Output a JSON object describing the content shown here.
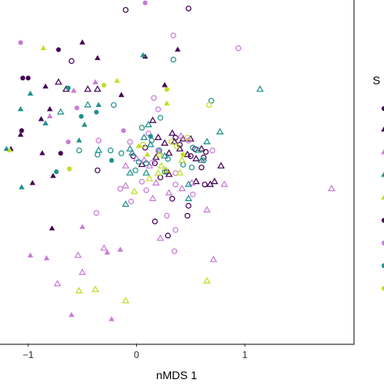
{
  "chart_data": {
    "type": "scatter",
    "title": "",
    "xlabel": "nMDS 1",
    "ylabel": "",
    "xlim": [
      -1.26,
      2.0
    ],
    "ylim": [
      -1.22,
      1.2
    ],
    "x_ticks": [
      -1,
      0,
      1
    ],
    "x_tick_labels": [
      "−1",
      "0",
      "1"
    ],
    "grid": false,
    "legend": {
      "position": "right",
      "title_visible_fragment": "S",
      "entries_visible": false
    },
    "colors": {
      "purple": "#440154",
      "lilac": "#c77cd6",
      "teal": "#21908c",
      "lime": "#bddf26"
    },
    "series": [
      {
        "color": "purple",
        "shape": "triangle-filled",
        "points": [
          [
            -0.5,
            0.9
          ],
          [
            -0.36,
            0.79
          ],
          [
            0.08,
            0.8
          ],
          [
            0.38,
            0.85
          ],
          [
            -0.84,
            0.59
          ],
          [
            -0.8,
            0.43
          ],
          [
            -0.88,
            0.36
          ],
          [
            -1.07,
            0.25
          ],
          [
            -0.87,
            0.12
          ],
          [
            -0.77,
            -0.04
          ],
          [
            -0.96,
            -0.09
          ],
          [
            -1.16,
            0.15
          ],
          [
            -0.78,
            -0.41
          ],
          [
            -0.14,
            0.53
          ],
          [
            0.26,
            0.6
          ]
        ]
      },
      {
        "color": "purple",
        "shape": "triangle-open",
        "points": [
          [
            -0.45,
            0.57
          ],
          [
            -0.72,
            0.62
          ],
          [
            -0.65,
            0.57
          ],
          [
            0.05,
            0.04
          ],
          [
            0.18,
            0.09
          ],
          [
            0.26,
            0.19
          ],
          [
            0.3,
            0.12
          ],
          [
            0.33,
            0.26
          ],
          [
            0.35,
            0.2
          ],
          [
            0.4,
            0.15
          ],
          [
            0.47,
            0.11
          ],
          [
            0.5,
            0.22
          ],
          [
            0.55,
            0.08
          ],
          [
            0.6,
            0.15
          ],
          [
            0.2,
            0.23
          ],
          [
            0.43,
            0.22
          ],
          [
            0.3,
            -0.03
          ],
          [
            0.55,
            -0.08
          ],
          [
            0.68,
            -0.1
          ],
          [
            0.78,
            0.03
          ],
          [
            0.72,
            -0.08
          ],
          [
            0.15,
            0.35
          ],
          [
            -0.36,
            0.57
          ]
        ]
      },
      {
        "color": "purple",
        "shape": "circle-filled",
        "points": [
          [
            -1.0,
            0.65
          ],
          [
            -1.05,
            0.65
          ],
          [
            -0.72,
            0.85
          ],
          [
            -1.06,
            0.28
          ],
          [
            -0.7,
            0.12
          ]
        ]
      },
      {
        "color": "purple",
        "shape": "circle-open",
        "points": [
          [
            -0.6,
            0.77
          ],
          [
            -0.1,
            1.13
          ],
          [
            0.48,
            1.14
          ],
          [
            0.08,
            0.16
          ],
          [
            0.17,
            0.05
          ],
          [
            -0.36,
            0.0
          ],
          [
            0.28,
            -0.01
          ],
          [
            0.4,
            0.18
          ],
          [
            0.5,
            0.1
          ],
          [
            0.54,
            0.15
          ],
          [
            0.62,
            0.09
          ],
          [
            0.64,
            0.13
          ],
          [
            0.63,
            -0.1
          ],
          [
            0.22,
            -0.05
          ],
          [
            0.33,
            -0.2
          ],
          [
            0.48,
            -0.25
          ],
          [
            0.17,
            -0.36
          ],
          [
            0.29,
            -0.46
          ],
          [
            0.47,
            -0.32
          ],
          [
            -0.03,
            0.1
          ],
          [
            0.36,
            0.23
          ],
          [
            0.6,
            0.02
          ]
        ]
      },
      {
        "color": "lilac",
        "shape": "triangle-filled",
        "points": [
          [
            -0.8,
            0.38
          ],
          [
            -0.38,
            0.62
          ],
          [
            -0.58,
            0.56
          ],
          [
            -0.5,
            -0.4
          ],
          [
            -0.83,
            -0.62
          ],
          [
            -0.15,
            -0.56
          ],
          [
            -0.27,
            -0.58
          ],
          [
            -0.98,
            -0.6
          ],
          [
            -0.6,
            -1.02
          ],
          [
            -0.23,
            -1.05
          ]
        ]
      },
      {
        "color": "lilac",
        "shape": "triangle-open",
        "points": [
          [
            0.0,
            0.08
          ],
          [
            0.12,
            0.03
          ],
          [
            0.21,
            0.13
          ],
          [
            0.18,
            -0.09
          ],
          [
            -0.1,
            -0.11
          ],
          [
            0.41,
            0.24
          ],
          [
            0.3,
            -0.16
          ],
          [
            0.42,
            -0.13
          ],
          [
            0.51,
            -0.09
          ],
          [
            0.81,
            -0.1
          ],
          [
            1.8,
            -0.13
          ],
          [
            0.15,
            -0.2
          ],
          [
            0.65,
            -0.28
          ],
          [
            0.22,
            -0.48
          ],
          [
            0.71,
            -0.63
          ],
          [
            -0.54,
            -0.6
          ],
          [
            -0.3,
            -0.55
          ],
          [
            -0.5,
            -0.72
          ],
          [
            -0.73,
            -0.8
          ],
          [
            0.07,
            0.07
          ],
          [
            -0.1,
            0.03
          ]
        ]
      },
      {
        "color": "lilac",
        "shape": "circle-filled",
        "points": [
          [
            0.3,
            1.24
          ],
          [
            0.08,
            1.18
          ],
          [
            -1.07,
            0.9
          ],
          [
            -0.55,
            0.44
          ],
          [
            -0.12,
            0.28
          ],
          [
            -0.63,
            0.2
          ]
        ]
      },
      {
        "color": "lilac",
        "shape": "circle-open",
        "points": [
          [
            0.16,
            0.51
          ],
          [
            0.2,
            0.43
          ],
          [
            0.34,
            0.95
          ],
          [
            0.94,
            0.86
          ],
          [
            0.7,
            0.14
          ],
          [
            0.48,
            0.21
          ],
          [
            0.36,
            -0.02
          ],
          [
            0.11,
            0.26
          ],
          [
            -0.06,
            0.2
          ],
          [
            0.36,
            -0.1
          ],
          [
            0.05,
            -0.08
          ],
          [
            -0.15,
            -0.13
          ],
          [
            0.36,
            -0.42
          ],
          [
            -0.05,
            -0.22
          ],
          [
            0.28,
            -0.32
          ],
          [
            0.14,
            0.05
          ],
          [
            -0.35,
            0.21
          ],
          [
            -0.37,
            -0.3
          ],
          [
            0.35,
            -0.57
          ],
          [
            0.52,
            -0.17
          ],
          [
            0.09,
            -0.14
          ],
          [
            0.2,
            0.14
          ]
        ]
      },
      {
        "color": "teal",
        "shape": "triangle-filled",
        "points": [
          [
            0.06,
            0.81
          ],
          [
            -0.98,
            0.54
          ],
          [
            -1.2,
            0.15
          ],
          [
            -1.06,
            -0.12
          ],
          [
            -1.07,
            0.43
          ],
          [
            -0.35,
            0.46
          ],
          [
            -0.48,
            0.32
          ],
          [
            -0.84,
            0.33
          ],
          [
            -0.53,
            0.21
          ]
        ]
      },
      {
        "color": "teal",
        "shape": "triangle-open",
        "points": [
          [
            1.14,
            0.57
          ],
          [
            0.11,
            0.32
          ],
          [
            0.13,
            0.18
          ],
          [
            -0.04,
            0.12
          ],
          [
            0.07,
            0.23
          ],
          [
            0.77,
            0.27
          ],
          [
            0.65,
            0.2
          ],
          [
            0.57,
            0.14
          ],
          [
            0.26,
            0.1
          ],
          [
            0.48,
            -0.1
          ],
          [
            0.09,
            -0.02
          ],
          [
            -0.06,
            0.15
          ],
          [
            -0.06,
            -0.02
          ],
          [
            -0.35,
            0.14
          ],
          [
            -0.1,
            -0.24
          ],
          [
            0.6,
            0.07
          ],
          [
            -0.7,
            0.41
          ],
          [
            -0.45,
            0.46
          ],
          [
            0.48,
            -0.2
          ]
        ]
      },
      {
        "color": "teal",
        "shape": "circle-filled",
        "points": [
          [
            -0.63,
            0.58
          ],
          [
            -0.37,
            0.41
          ],
          [
            -0.51,
            0.38
          ],
          [
            0.13,
            0.24
          ],
          [
            -0.23,
            0.07
          ],
          [
            -0.74,
            -0.01
          ]
        ]
      },
      {
        "color": "teal",
        "shape": "circle-open",
        "points": [
          [
            -0.21,
            0.46
          ],
          [
            0.22,
            0.37
          ],
          [
            0.34,
            0.78
          ],
          [
            0.69,
            0.49
          ],
          [
            0.05,
            0.3
          ],
          [
            0.14,
            0.21
          ],
          [
            0.52,
            0.16
          ],
          [
            0.02,
            0.06
          ],
          [
            0.21,
            0.14
          ],
          [
            -0.24,
            0.14
          ],
          [
            -0.14,
            0.12
          ],
          [
            0.26,
            -0.01
          ],
          [
            0.43,
            0.04
          ],
          [
            -0.01,
            0.0
          ],
          [
            0.29,
            0.08
          ],
          [
            -0.36,
            0.11
          ],
          [
            0.09,
            0.05
          ],
          [
            0.62,
            0.07
          ],
          [
            0.51,
            0.02
          ],
          [
            -0.53,
            0.14
          ]
        ]
      },
      {
        "color": "lime",
        "shape": "triangle-filled",
        "points": [
          [
            -0.18,
            0.63
          ],
          [
            -0.86,
            0.86
          ],
          [
            0.28,
            0.47
          ],
          [
            -1.17,
            0.14
          ],
          [
            0.02,
            0.17
          ],
          [
            0.1,
            0.11
          ]
        ]
      },
      {
        "color": "lime",
        "shape": "triangle-open",
        "points": [
          [
            0.21,
            0.11
          ],
          [
            0.23,
            0.03
          ],
          [
            0.42,
            0.07
          ],
          [
            0.4,
            -0.02
          ],
          [
            0.27,
            0.0
          ],
          [
            0.12,
            -0.06
          ],
          [
            -0.53,
            -0.85
          ],
          [
            -0.38,
            -0.84
          ],
          [
            -0.1,
            -0.92
          ],
          [
            0.65,
            -0.78
          ],
          [
            -0.02,
            -0.15
          ],
          [
            0.2,
            -0.02
          ]
        ]
      },
      {
        "color": "lime",
        "shape": "circle-filled",
        "points": [
          [
            -0.3,
            0.6
          ],
          [
            -0.62,
            0.01
          ],
          [
            0.28,
            0.57
          ],
          [
            0.43,
            0.11
          ]
        ]
      },
      {
        "color": "lime",
        "shape": "circle-open",
        "points": [
          [
            0.67,
            0.46
          ],
          [
            0.47,
            0.23
          ],
          [
            0.06,
            0.18
          ],
          [
            0.32,
            0.2
          ],
          [
            0.37,
            0.17
          ]
        ]
      }
    ]
  }
}
